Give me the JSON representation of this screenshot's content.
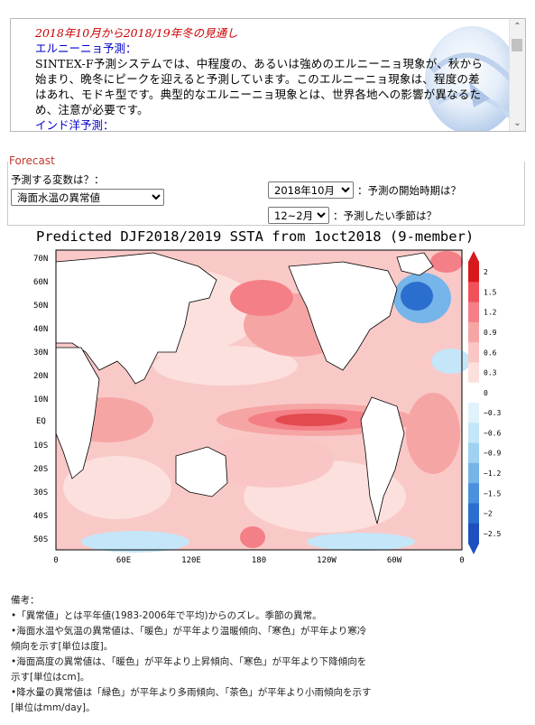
{
  "news": {
    "title": "2018年10月から2018/19年冬の見通し",
    "enso_heading": "エルニーニョ予測：",
    "enso_text": "SINTEX-F予測システムでは、中程度の、あるいは強めのエルニーニョ現象が、秋から始まり、晩冬にピークを迎えると予測しています。このエルニーニョ現象は、程度の差はあれ、モドキ型です。典型的なエルニーニョ現象とは、世界各地への影響が異なるため、注意が必要です。",
    "iod_heading": "インド洋予測：",
    "scroll_up": "⌃",
    "scroll_down": "⌄"
  },
  "forecast": {
    "legend": "Forecast",
    "variable_question": "予測する変数は？：",
    "variable_value": "海面水温の異常値",
    "start_value": "2018年10月",
    "start_question": "：予測の開始時期は？",
    "season_value": "12~2月",
    "season_question": "：予測したい季節は？"
  },
  "chart_data": {
    "type": "heatmap",
    "title": "Predicted DJF2018/2019 SSTA from 1oct2018 (9-member)",
    "x_ticks": [
      "0",
      "60E",
      "120E",
      "180",
      "120W",
      "60W",
      "0"
    ],
    "y_ticks": [
      "70N",
      "60N",
      "50N",
      "40N",
      "30N",
      "20N",
      "10N",
      "EQ",
      "10S",
      "20S",
      "30S",
      "40S",
      "50S"
    ],
    "colorbar_ticks": [
      "2",
      "1.5",
      "1.2",
      "0.9",
      "0.6",
      "0.3",
      "0",
      "−0.3",
      "−0.6",
      "−0.9",
      "−1.2",
      "−1.5",
      "−2",
      "−2.5"
    ],
    "colorbar_colors": [
      "#d7191c",
      "#f0505a",
      "#f47f86",
      "#f6a5a5",
      "#f9c6c5",
      "#fce0de",
      "#ffffff",
      "#e1f2fb",
      "#c4e6f8",
      "#9fd1f1",
      "#76b5e9",
      "#4c91dd",
      "#2b6fce",
      "#1d4fbf"
    ],
    "feature": "Warm anomaly centred in central equatorial Pacific (~+1.5); cold anomaly in NW Atlantic near 50N (~−2)."
  },
  "notes": {
    "heading": "備考：",
    "lines": [
      "•「異常値」とは平年値(1983-2006年で平均)からのズレ。季節の異常。",
      "•海面水温や気温の異常値は、「暖色」が平年より温暖傾向、「寒色」が平年より寒冷傾向を示す[単位は度]。",
      "•海面高度の異常値は、「暖色」が平年より上昇傾向、「寒色」が平年より下降傾向を示す[単位はcm]。",
      "•降水量の異常値は「緑色」が平年より多雨傾向、「茶色」が平年より小雨傾向を示す[単位はmm/day]。"
    ]
  }
}
